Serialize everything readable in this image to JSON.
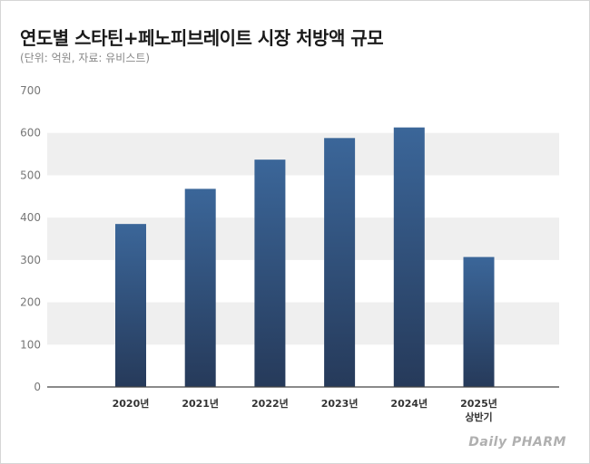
{
  "title": "연도별 스타틴+페노피브레이트 시장 처방액 규모",
  "subtitle": "(단위: 억원, 자료: 유비스트)",
  "logo_text": "Daily PHARM",
  "colors": {
    "bar_top": "#3b6699",
    "bar_bottom": "#263a5a",
    "band": "#efefef",
    "axis": "#444444"
  },
  "chart_data": {
    "type": "bar",
    "categories": [
      "2020년",
      "2021년",
      "2022년",
      "2023년",
      "2024년",
      "2025년\n상반기"
    ],
    "values": [
      385,
      468,
      537,
      588,
      613,
      307
    ],
    "title": "연도별 스타틴+페노피브레이트 시장 처방액 규모",
    "xlabel": "",
    "ylabel": "",
    "unit": "억원",
    "ylim": [
      0,
      700
    ],
    "yticks": [
      0,
      100,
      200,
      300,
      400,
      500,
      600,
      700
    ],
    "grid": "alternating horizontal bands",
    "legend": "none"
  }
}
